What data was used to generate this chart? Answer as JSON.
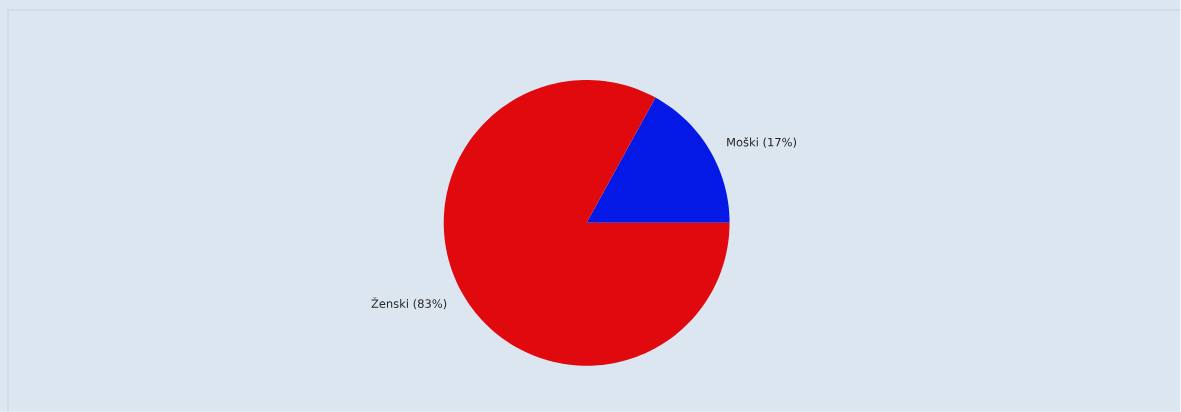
{
  "chart_data": {
    "type": "pie",
    "categories": [
      "Moški",
      "Ženski"
    ],
    "values": [
      17,
      83
    ],
    "value_labels": [
      "(17%)",
      "(83%)"
    ],
    "colors": [
      "#0519e6",
      "#e00a0e"
    ]
  }
}
